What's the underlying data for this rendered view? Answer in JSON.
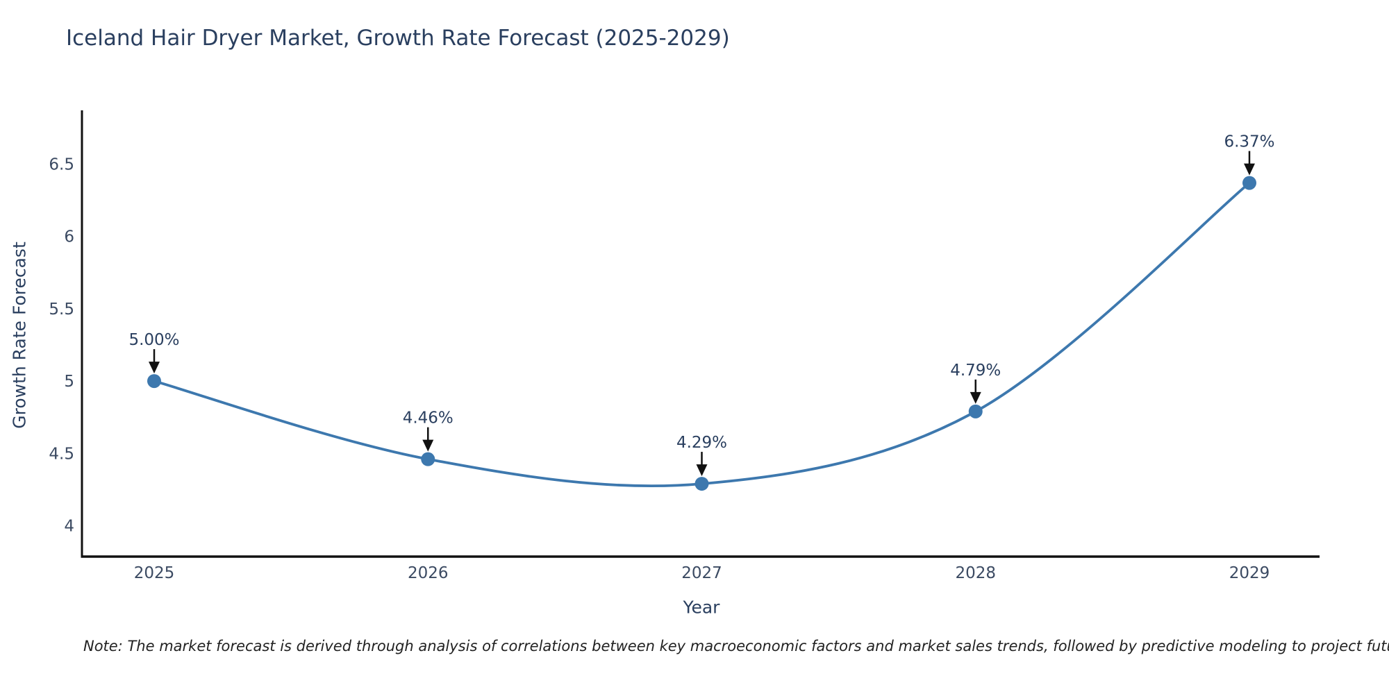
{
  "title": "Iceland Hair Dryer Market, Growth Rate Forecast (2025-2029)",
  "note": "Note: The market forecast is derived through analysis of correlations between key macroeconomic factors and market sales trends, followed by predictive modeling to project future sales",
  "xaxis": {
    "title": "Year",
    "ticks": [
      "2025",
      "2026",
      "2027",
      "2028",
      "2029"
    ]
  },
  "yaxis": {
    "title": "Growth Rate Forecast",
    "ticks": [
      "4",
      "4.5",
      "5",
      "5.5",
      "6",
      "6.5"
    ]
  },
  "colors": {
    "line": "#3d78ae",
    "marker": "#3d78ae",
    "axis_line": "#111111",
    "arrow": "#111111",
    "tick_text": "#3b4a62",
    "title_text": "#2a3f5f"
  },
  "chart_data": {
    "type": "line",
    "x": [
      2025,
      2026,
      2027,
      2028,
      2029
    ],
    "values": [
      5.0,
      4.46,
      4.29,
      4.79,
      6.37
    ],
    "point_labels": [
      "5.00%",
      "4.46%",
      "4.29%",
      "4.79%",
      "6.37%"
    ],
    "series_name": "Growth Rate Forecast",
    "title": "Iceland Hair Dryer Market, Growth Rate Forecast (2025-2029)",
    "xlabel": "Year",
    "ylabel": "Growth Rate Forecast",
    "xlim": [
      2024.74,
      2029.26
    ],
    "ylim": [
      3.79,
      6.89
    ],
    "yticks": [
      4,
      4.5,
      5,
      5.5,
      6,
      6.5
    ],
    "line_shape": "spline",
    "markers": true,
    "grid": false,
    "legend": false,
    "annotations_have_arrows": true
  }
}
